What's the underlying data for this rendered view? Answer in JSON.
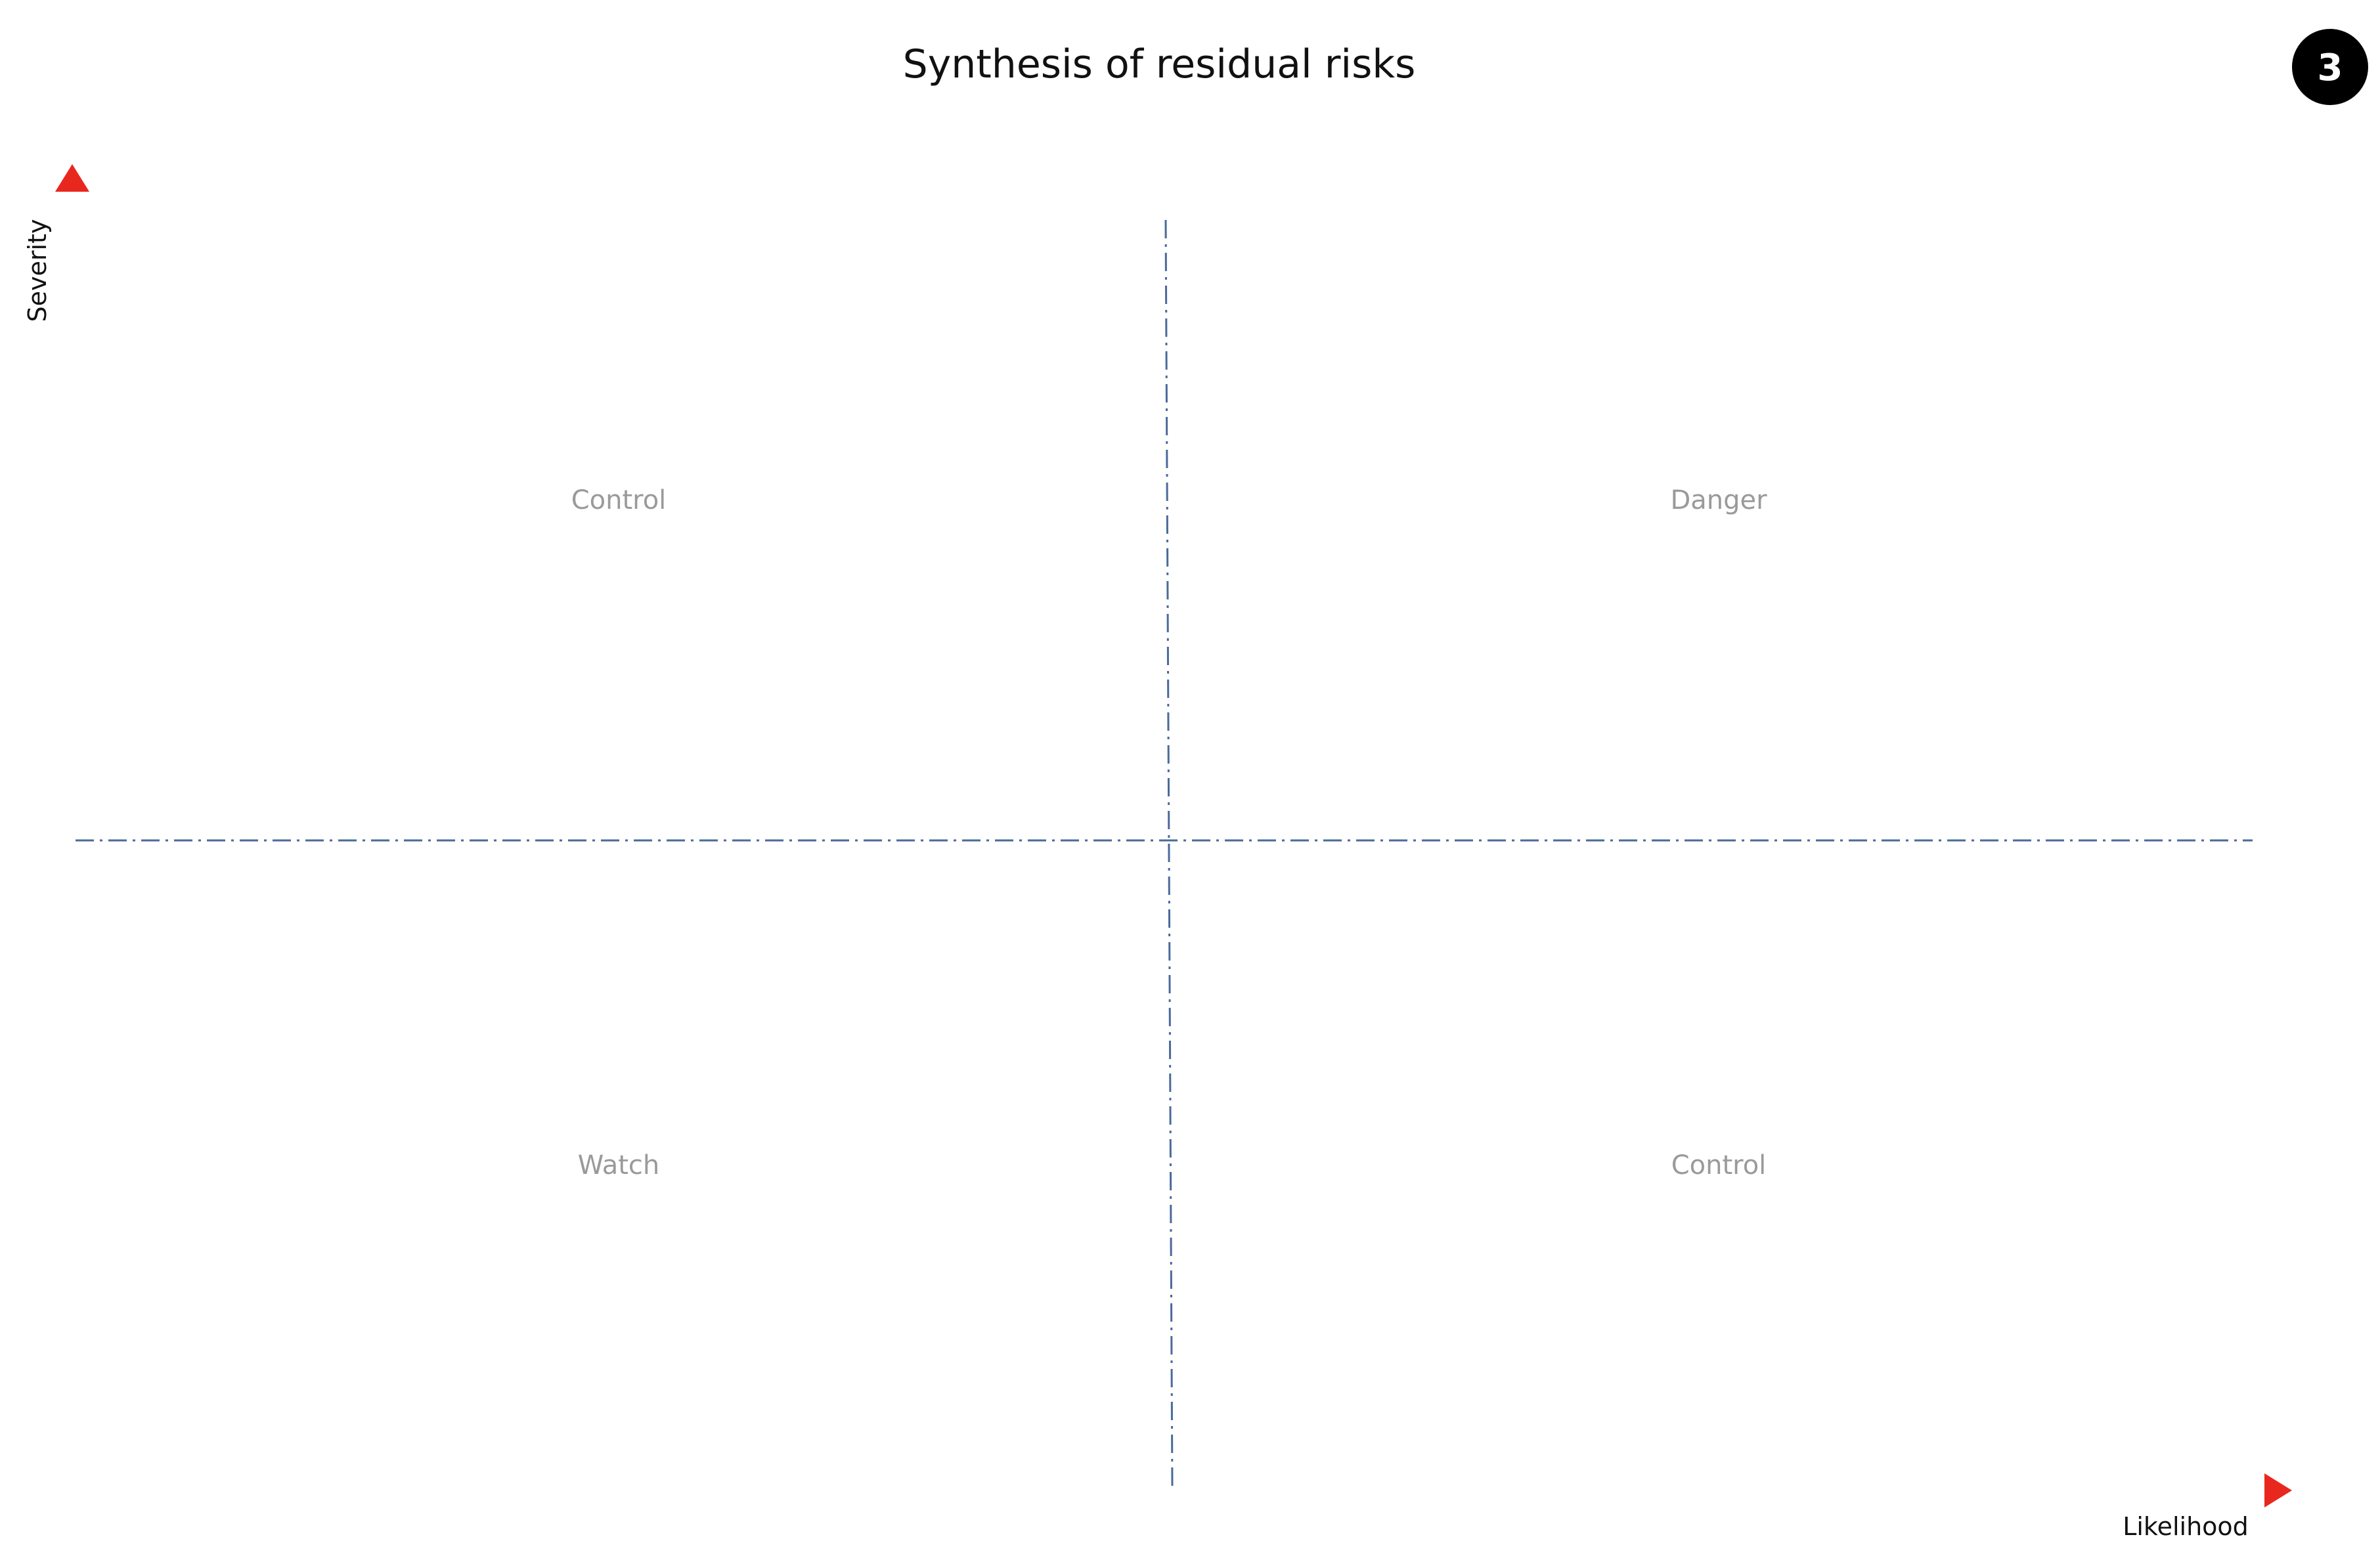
{
  "diagram": {
    "title": "Synthesis of residual risks",
    "badge": "3",
    "axes": {
      "y_label": "Severity",
      "x_label": "Likelihood",
      "gradient_colors": {
        "low": "#8bc34a",
        "mid": "#f4c430",
        "high": "#e8281e"
      }
    },
    "divider_color": "#4a6a9a",
    "quadrants": {
      "top_left": "Control",
      "top_right": "Danger",
      "bottom_left": "Watch",
      "bottom_right": "Control"
    }
  }
}
